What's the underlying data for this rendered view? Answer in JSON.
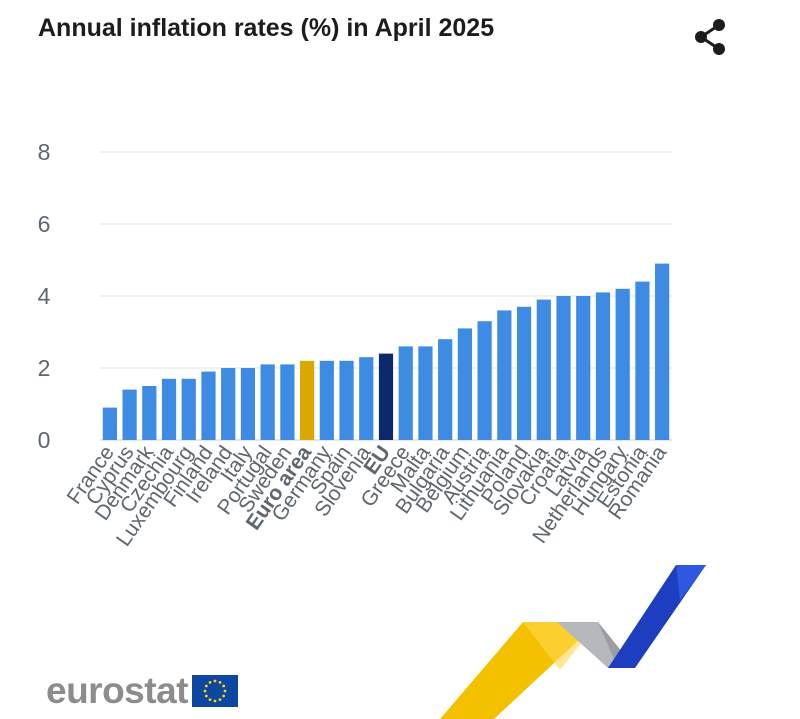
{
  "title": "Annual inflation rates (%) in April 2025",
  "share_icon": "share-icon",
  "logo_text": "eurostat",
  "colors": {
    "bar": "#3d8be3",
    "euro_area": "#d9a900",
    "eu": "#0c2a6b",
    "grid": "#dfe4ea",
    "tick": "#5d6770"
  },
  "chart_data": {
    "type": "bar",
    "title": "Annual inflation rates (%) in April 2025",
    "xlabel": "",
    "ylabel": "",
    "ylim": [
      0,
      8
    ],
    "yticks": [
      0,
      2,
      4,
      6,
      8
    ],
    "grid": true,
    "categories": [
      "France",
      "Cyprus",
      "Denmark",
      "Czechia",
      "Luxembourg",
      "Finland",
      "Ireland",
      "Italy",
      "Portugal",
      "Sweden",
      "Euro area",
      "Germany",
      "Spain",
      "Slovenia",
      "EU",
      "Greece",
      "Malta",
      "Bulgaria",
      "Belgium",
      "Austria",
      "Lithuania",
      "Poland",
      "Slovakia",
      "Croatia",
      "Latvia",
      "Netherlands",
      "Hungary",
      "Estonia",
      "Romania"
    ],
    "values": [
      0.9,
      1.4,
      1.5,
      1.7,
      1.7,
      1.9,
      2.0,
      2.0,
      2.1,
      2.1,
      2.2,
      2.2,
      2.2,
      2.3,
      2.4,
      2.6,
      2.6,
      2.8,
      3.1,
      3.3,
      3.6,
      3.7,
      3.9,
      4.0,
      4.0,
      4.1,
      4.2,
      4.4,
      4.9
    ],
    "highlight": {
      "Euro area": "euro_area",
      "EU": "eu"
    },
    "bold_categories": [
      "Euro area",
      "EU"
    ]
  }
}
